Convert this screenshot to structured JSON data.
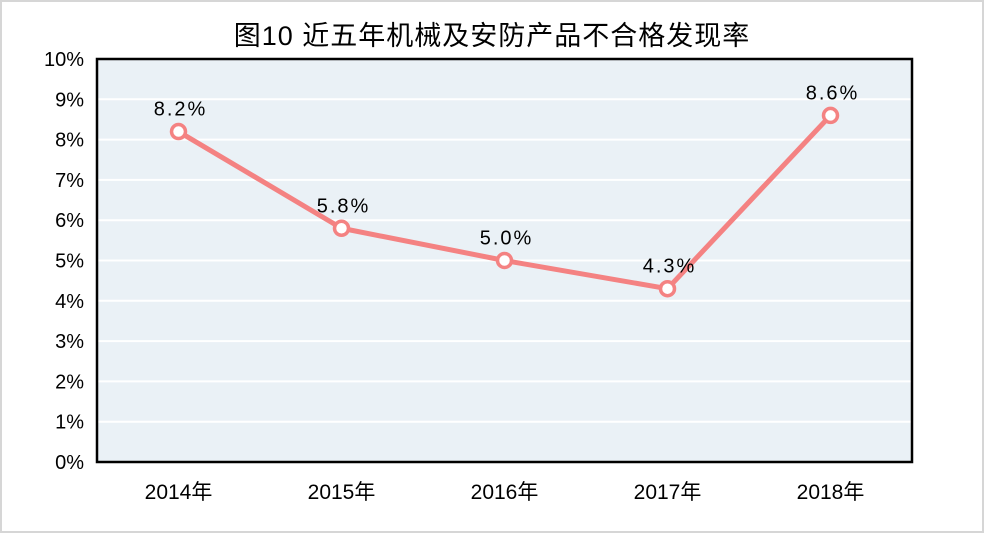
{
  "chart_data": {
    "type": "line",
    "title": "图10 近五年机械及安防产品不合格发现率",
    "categories": [
      "2014年",
      "2015年",
      "2016年",
      "2017年",
      "2018年"
    ],
    "values": [
      8.2,
      5.8,
      5.0,
      4.3,
      8.6
    ],
    "data_labels": [
      "8.2%",
      "5.8%",
      "5.0%",
      "4.3%",
      "8.6%"
    ],
    "xlabel": "",
    "ylabel": "",
    "ylim": [
      0,
      10
    ],
    "ytick_step": 1,
    "ytick_labels": [
      "0%",
      "1%",
      "2%",
      "3%",
      "4%",
      "5%",
      "6%",
      "7%",
      "8%",
      "9%",
      "10%"
    ],
    "grid": true,
    "legend": false,
    "colors": {
      "line": "#F48282",
      "marker_fill": "#FFFFFF",
      "marker_stroke": "#F48282",
      "plot_bg": "#EAF1F6",
      "gridline": "#FFFFFF",
      "plot_border": "#000000",
      "text": "#000000",
      "frame_border": "#D6D6D6"
    }
  }
}
